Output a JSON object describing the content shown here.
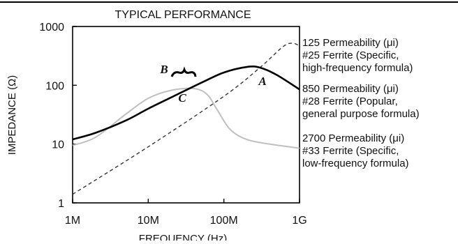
{
  "chart_data": {
    "type": "line",
    "title": "TYPICAL PERFORMANCE",
    "xlabel": "FREQUENCY (Hz)",
    "ylabel": "IMPEDANCE (Ω)",
    "x_scale": "log",
    "y_scale": "log",
    "xlim": [
      1000000,
      1000000000
    ],
    "ylim": [
      1,
      1000
    ],
    "x_ticks": [
      {
        "value": 1000000,
        "label": "1M"
      },
      {
        "value": 10000000,
        "label": "10M"
      },
      {
        "value": 100000000,
        "label": "100M"
      },
      {
        "value": 1000000000,
        "label": "1G"
      }
    ],
    "y_ticks": [
      {
        "value": 1,
        "label": "1"
      },
      {
        "value": 10,
        "label": "10"
      },
      {
        "value": 100,
        "label": "100"
      },
      {
        "value": 1000,
        "label": "1000"
      }
    ],
    "grid": false,
    "series": [
      {
        "label": "A",
        "style": "solid",
        "color": "#000000",
        "x": [
          1000000,
          2000000,
          5000000,
          10000000,
          20000000,
          50000000,
          100000000,
          200000000,
          300000000,
          500000000,
          1000000000
        ],
        "y": [
          12,
          15.5,
          25,
          40,
          62,
          110,
          165,
          205,
          200,
          150,
          85
        ]
      },
      {
        "label": "",
        "style": "dashed",
        "color": "#333333",
        "x": [
          1000000,
          10000000,
          100000000,
          300000000,
          600000000,
          800000000,
          1000000000
        ],
        "y": [
          1.4,
          9,
          65,
          200,
          450,
          520,
          470
        ]
      },
      {
        "label": "C",
        "style": "solid",
        "color": "#bfbfbf",
        "x": [
          1000000,
          2000000,
          5000000,
          10000000,
          20000000,
          40000000,
          60000000,
          80000000,
          120000000,
          200000000,
          400000000,
          1000000000
        ],
        "y": [
          9.5,
          13,
          32,
          60,
          82,
          88,
          70,
          40,
          18,
          12,
          10,
          8.5
        ]
      }
    ],
    "annotations": [
      {
        "text": "B",
        "x": 20000000,
        "y": 130
      },
      {
        "text": "A",
        "x": 500000000,
        "y": 85
      },
      {
        "text": "C",
        "x": 40000000,
        "y": 62
      }
    ],
    "legend": [
      {
        "lines": [
          "125 Permeability (μi)",
          "#25 Ferrite (Specific,",
          "high-frequency formula)"
        ]
      },
      {
        "lines": [
          "850 Permeability (μi)",
          "#28 Ferrite (Popular,",
          "general purpose formula)"
        ]
      },
      {
        "lines": [
          "2700 Permeability (μi)",
          "#33 Ferrite (Specific,",
          "low-frequency formula)"
        ]
      }
    ]
  }
}
